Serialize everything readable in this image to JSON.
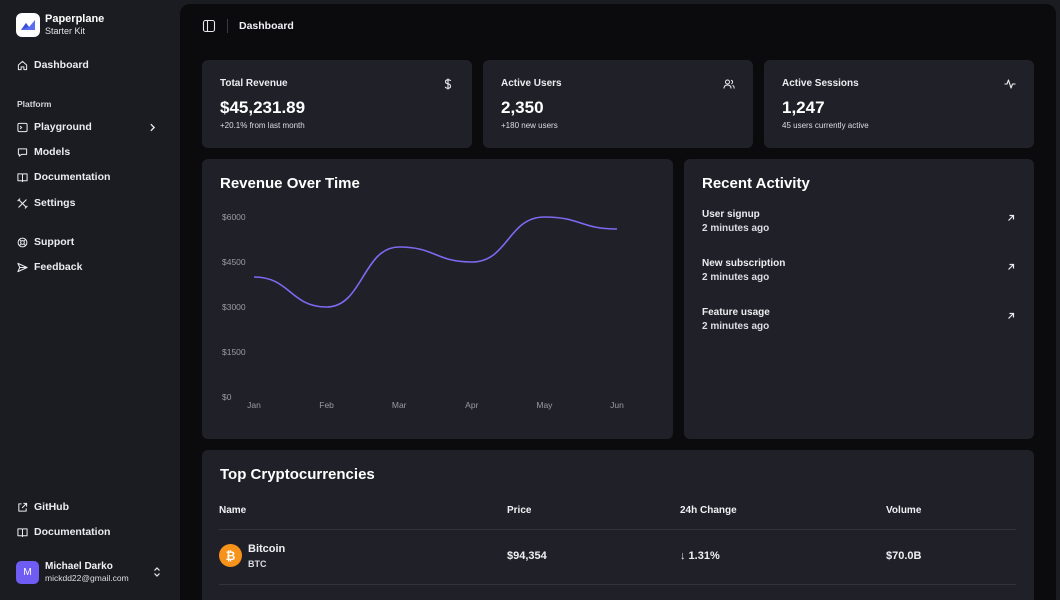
{
  "brand": {
    "name": "Paperplane",
    "subtitle": "Starter Kit"
  },
  "sidebar": {
    "top_item": {
      "label": "Dashboard",
      "icon": "home-icon"
    },
    "group_label": "Platform",
    "items": [
      {
        "label": "Playground",
        "icon": "terminal-icon"
      },
      {
        "label": "Models",
        "icon": "chat-icon"
      },
      {
        "label": "Documentation",
        "icon": "book-icon"
      },
      {
        "label": "Settings",
        "icon": "tools-icon"
      }
    ],
    "secondary": [
      {
        "label": "Support",
        "icon": "lifebuoy-icon"
      },
      {
        "label": "Feedback",
        "icon": "send-icon"
      }
    ],
    "footer_links": [
      {
        "label": "GitHub",
        "icon": "external-link-icon"
      },
      {
        "label": "Documentation",
        "icon": "book-icon"
      }
    ],
    "user": {
      "initial": "M",
      "name": "Michael Darko",
      "email": "mickdd22@gmail.com"
    }
  },
  "header": {
    "title": "Dashboard"
  },
  "stats": [
    {
      "title": "Total Revenue",
      "value": "$45,231.89",
      "sub": "+20.1% from last month",
      "icon": "dollar-icon"
    },
    {
      "title": "Active Users",
      "value": "2,350",
      "sub": "+180 new users",
      "icon": "users-icon"
    },
    {
      "title": "Active Sessions",
      "value": "1,247",
      "sub": "45 users currently active",
      "icon": "activity-icon"
    }
  ],
  "revenue_section": {
    "title": "Revenue Over Time"
  },
  "chart_data": {
    "type": "line",
    "title": "Revenue Over Time",
    "categories": [
      "Jan",
      "Feb",
      "Mar",
      "Apr",
      "May",
      "Jun"
    ],
    "series": [
      {
        "name": "Revenue",
        "values": [
          4000,
          3000,
          5000,
          4500,
          6000,
          5600
        ]
      }
    ],
    "yticks": [
      0,
      1500,
      3000,
      4500,
      6000
    ],
    "ytick_labels": [
      "$0",
      "$1500",
      "$3000",
      "$4500",
      "$6000"
    ],
    "ylim": [
      0,
      6000
    ],
    "xlabel": "",
    "ylabel": "",
    "color": "#7c6af2"
  },
  "activity": {
    "title": "Recent Activity",
    "items": [
      {
        "title": "User signup",
        "time": "2 minutes ago"
      },
      {
        "title": "New subscription",
        "time": "2 minutes ago"
      },
      {
        "title": "Feature usage",
        "time": "2 minutes ago"
      }
    ]
  },
  "crypto": {
    "title": "Top Cryptocurrencies",
    "columns": [
      "Name",
      "Price",
      "24h Change",
      "Volume"
    ],
    "rows": [
      {
        "name": "Bitcoin",
        "symbol": "BTC",
        "icon_glyph": "₿",
        "price": "$94,354",
        "change": "↓ 1.31%",
        "volume": "$70.0B"
      }
    ]
  },
  "colors": {
    "accent": "#7c6af2",
    "bitcoin": "#f7931a",
    "avatar": "#6f5cf2"
  }
}
